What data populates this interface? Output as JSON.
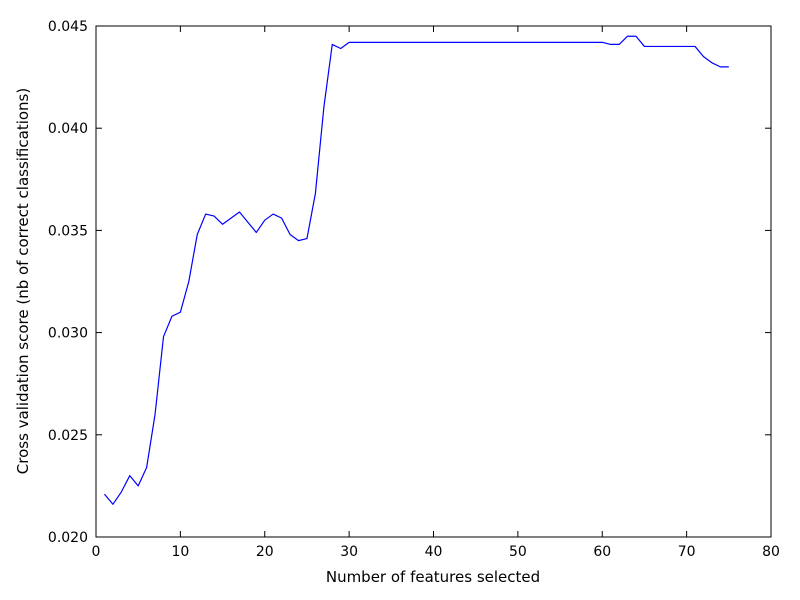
{
  "chart_data": {
    "type": "line",
    "title": "",
    "xlabel": "Number of features selected",
    "ylabel": "Cross validation score (nb of correct classifications)",
    "xlim": [
      0,
      80
    ],
    "ylim": [
      0.02,
      0.045
    ],
    "xticks": [
      0,
      10,
      20,
      30,
      40,
      50,
      60,
      70,
      80
    ],
    "xtick_labels": [
      "0",
      "10",
      "20",
      "30",
      "40",
      "50",
      "60",
      "70",
      "80"
    ],
    "yticks": [
      0.02,
      0.025,
      0.03,
      0.035,
      0.04,
      0.045
    ],
    "ytick_labels": [
      "0.020",
      "0.025",
      "0.030",
      "0.035",
      "0.040",
      "0.045"
    ],
    "grid": false,
    "legend": "none",
    "series": [
      {
        "color": "#0000ff",
        "x": [
          1,
          2,
          3,
          4,
          5,
          6,
          7,
          8,
          9,
          10,
          11,
          12,
          13,
          14,
          15,
          16,
          17,
          18,
          19,
          20,
          21,
          22,
          23,
          24,
          25,
          26,
          27,
          28,
          29,
          30,
          31,
          32,
          33,
          34,
          35,
          36,
          37,
          38,
          39,
          40,
          41,
          42,
          43,
          44,
          45,
          46,
          47,
          48,
          49,
          50,
          51,
          52,
          53,
          54,
          55,
          56,
          57,
          58,
          59,
          60,
          61,
          62,
          63,
          64,
          65,
          66,
          67,
          68,
          69,
          70,
          71,
          72,
          73,
          74,
          75
        ],
        "y": [
          0.0221,
          0.0216,
          0.0222,
          0.023,
          0.0225,
          0.0234,
          0.026,
          0.0298,
          0.0308,
          0.031,
          0.0325,
          0.0348,
          0.0358,
          0.0357,
          0.0353,
          0.0356,
          0.0359,
          0.0354,
          0.0349,
          0.0355,
          0.0358,
          0.0356,
          0.0348,
          0.0345,
          0.0346,
          0.0368,
          0.041,
          0.0441,
          0.0439,
          0.0442,
          0.0442,
          0.0442,
          0.0442,
          0.0442,
          0.0442,
          0.0442,
          0.0442,
          0.0442,
          0.0442,
          0.0442,
          0.0442,
          0.0442,
          0.0442,
          0.0442,
          0.0442,
          0.0442,
          0.0442,
          0.0442,
          0.0442,
          0.0442,
          0.0442,
          0.0442,
          0.0442,
          0.0442,
          0.0442,
          0.0442,
          0.0442,
          0.0442,
          0.0442,
          0.0442,
          0.0441,
          0.0441,
          0.0445,
          0.0445,
          0.044,
          0.044,
          0.044,
          0.044,
          0.044,
          0.044,
          0.044,
          0.0435,
          0.0432,
          0.043,
          0.043
        ]
      }
    ]
  }
}
